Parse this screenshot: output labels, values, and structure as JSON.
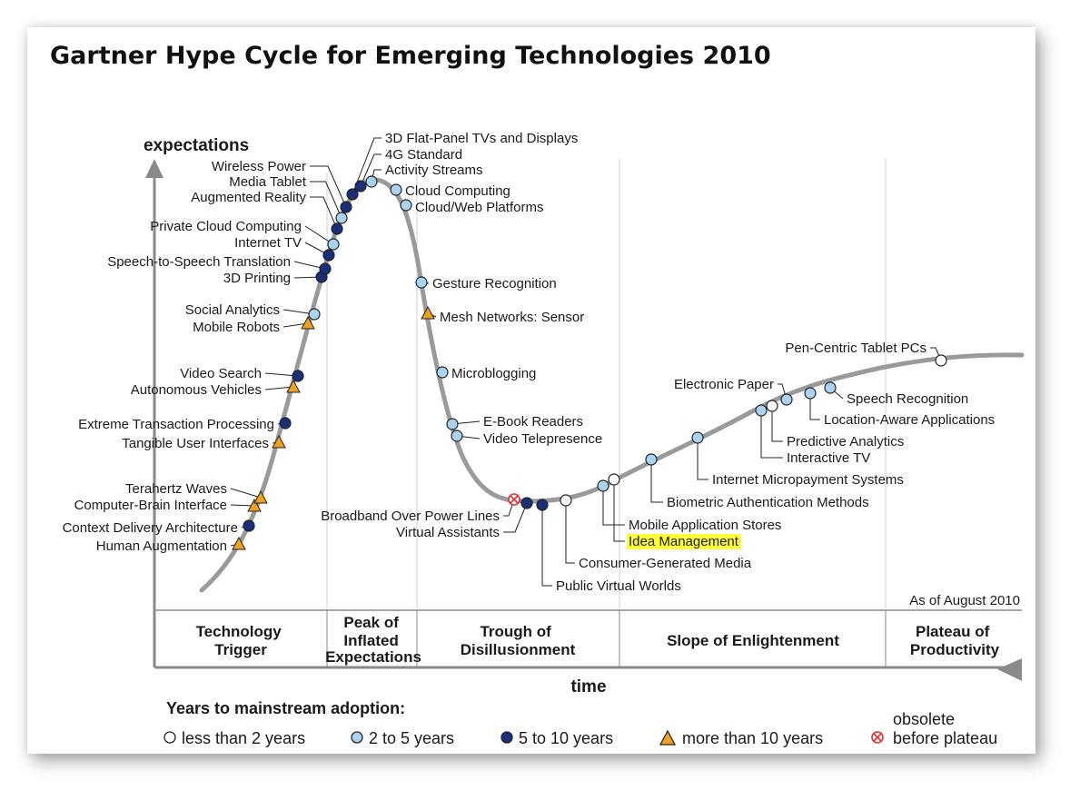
{
  "title": "Gartner Hype Cycle for Emerging Technologies 2010",
  "axes": {
    "y": "expectations",
    "x": "time"
  },
  "as_of": "As of August 2010",
  "phases": [
    [
      "Technology",
      "Trigger"
    ],
    [
      "Peak of",
      "Inflated",
      "Expectations"
    ],
    [
      "Trough of",
      "Disillusionment"
    ],
    [
      "Slope of Enlightenment"
    ],
    [
      "Plateau of",
      "Productivity"
    ]
  ],
  "legend": {
    "title": "Years to mainstream adoption:",
    "items": [
      {
        "key": "lt2",
        "label": "less than 2 years"
      },
      {
        "key": "2to5",
        "label": "2 to 5 years"
      },
      {
        "key": "5to10",
        "label": "5 to 10 years"
      },
      {
        "key": "gt10",
        "label": "more than 10 years"
      },
      {
        "key": "obs",
        "label_lines": [
          "obsolete",
          "before plateau"
        ]
      }
    ]
  },
  "colors": {
    "curve": "#9a9a9a",
    "lt2": "#ffffff",
    "2to5": "#a9d3f0",
    "5to10": "#1a2f7a",
    "gt10": "#f0a21e",
    "obs": "#e03030",
    "highlight": "#ffff33"
  },
  "technologies": [
    {
      "name": "Human Augmentation",
      "cat": "gt10"
    },
    {
      "name": "Context Delivery Architecture",
      "cat": "5to10"
    },
    {
      "name": "Computer-Brain Interface",
      "cat": "gt10"
    },
    {
      "name": "Terahertz Waves",
      "cat": "gt10"
    },
    {
      "name": "Tangible User Interfaces",
      "cat": "gt10"
    },
    {
      "name": "Extreme Transaction Processing",
      "cat": "5to10"
    },
    {
      "name": "Autonomous Vehicles",
      "cat": "gt10"
    },
    {
      "name": "Video Search",
      "cat": "5to10"
    },
    {
      "name": "Mobile Robots",
      "cat": "gt10"
    },
    {
      "name": "Social Analytics",
      "cat": "2to5"
    },
    {
      "name": "3D Printing",
      "cat": "5to10"
    },
    {
      "name": "Speech-to-Speech Translation",
      "cat": "5to10"
    },
    {
      "name": "Internet TV",
      "cat": "5to10"
    },
    {
      "name": "Private Cloud Computing",
      "cat": "2to5"
    },
    {
      "name": "Augmented Reality",
      "cat": "5to10"
    },
    {
      "name": "Media Tablet",
      "cat": "2to5"
    },
    {
      "name": "Wireless Power",
      "cat": "5to10"
    },
    {
      "name": "3D Flat-Panel TVs and Displays",
      "cat": "5to10"
    },
    {
      "name": "4G Standard",
      "cat": "5to10"
    },
    {
      "name": "Activity Streams",
      "cat": "2to5"
    },
    {
      "name": "Cloud Computing",
      "cat": "2to5"
    },
    {
      "name": "Cloud/Web Platforms",
      "cat": "2to5"
    },
    {
      "name": "Gesture Recognition",
      "cat": "2to5"
    },
    {
      "name": "Mesh Networks: Sensor",
      "cat": "gt10"
    },
    {
      "name": "Microblogging",
      "cat": "2to5"
    },
    {
      "name": "E-Book Readers",
      "cat": "2to5"
    },
    {
      "name": "Video Telepresence",
      "cat": "2to5"
    },
    {
      "name": "Broadband Over Power Lines",
      "cat": "obs"
    },
    {
      "name": "Virtual Assistants",
      "cat": "5to10"
    },
    {
      "name": "Public Virtual Worlds",
      "cat": "5to10"
    },
    {
      "name": "Consumer-Generated Media",
      "cat": "lt2"
    },
    {
      "name": "Idea Management",
      "cat": "lt2",
      "highlight": true
    },
    {
      "name": "Mobile Application Stores",
      "cat": "2to5"
    },
    {
      "name": "Biometric Authentication Methods",
      "cat": "2to5"
    },
    {
      "name": "Internet Micropayment Systems",
      "cat": "2to5"
    },
    {
      "name": "Interactive TV",
      "cat": "2to5"
    },
    {
      "name": "Predictive Analytics",
      "cat": "lt2"
    },
    {
      "name": "Electronic Paper",
      "cat": "2to5"
    },
    {
      "name": "Location-Aware Applications",
      "cat": "2to5"
    },
    {
      "name": "Speech Recognition",
      "cat": "2to5"
    },
    {
      "name": "Pen-Centric Tablet PCs",
      "cat": "lt2"
    }
  ]
}
